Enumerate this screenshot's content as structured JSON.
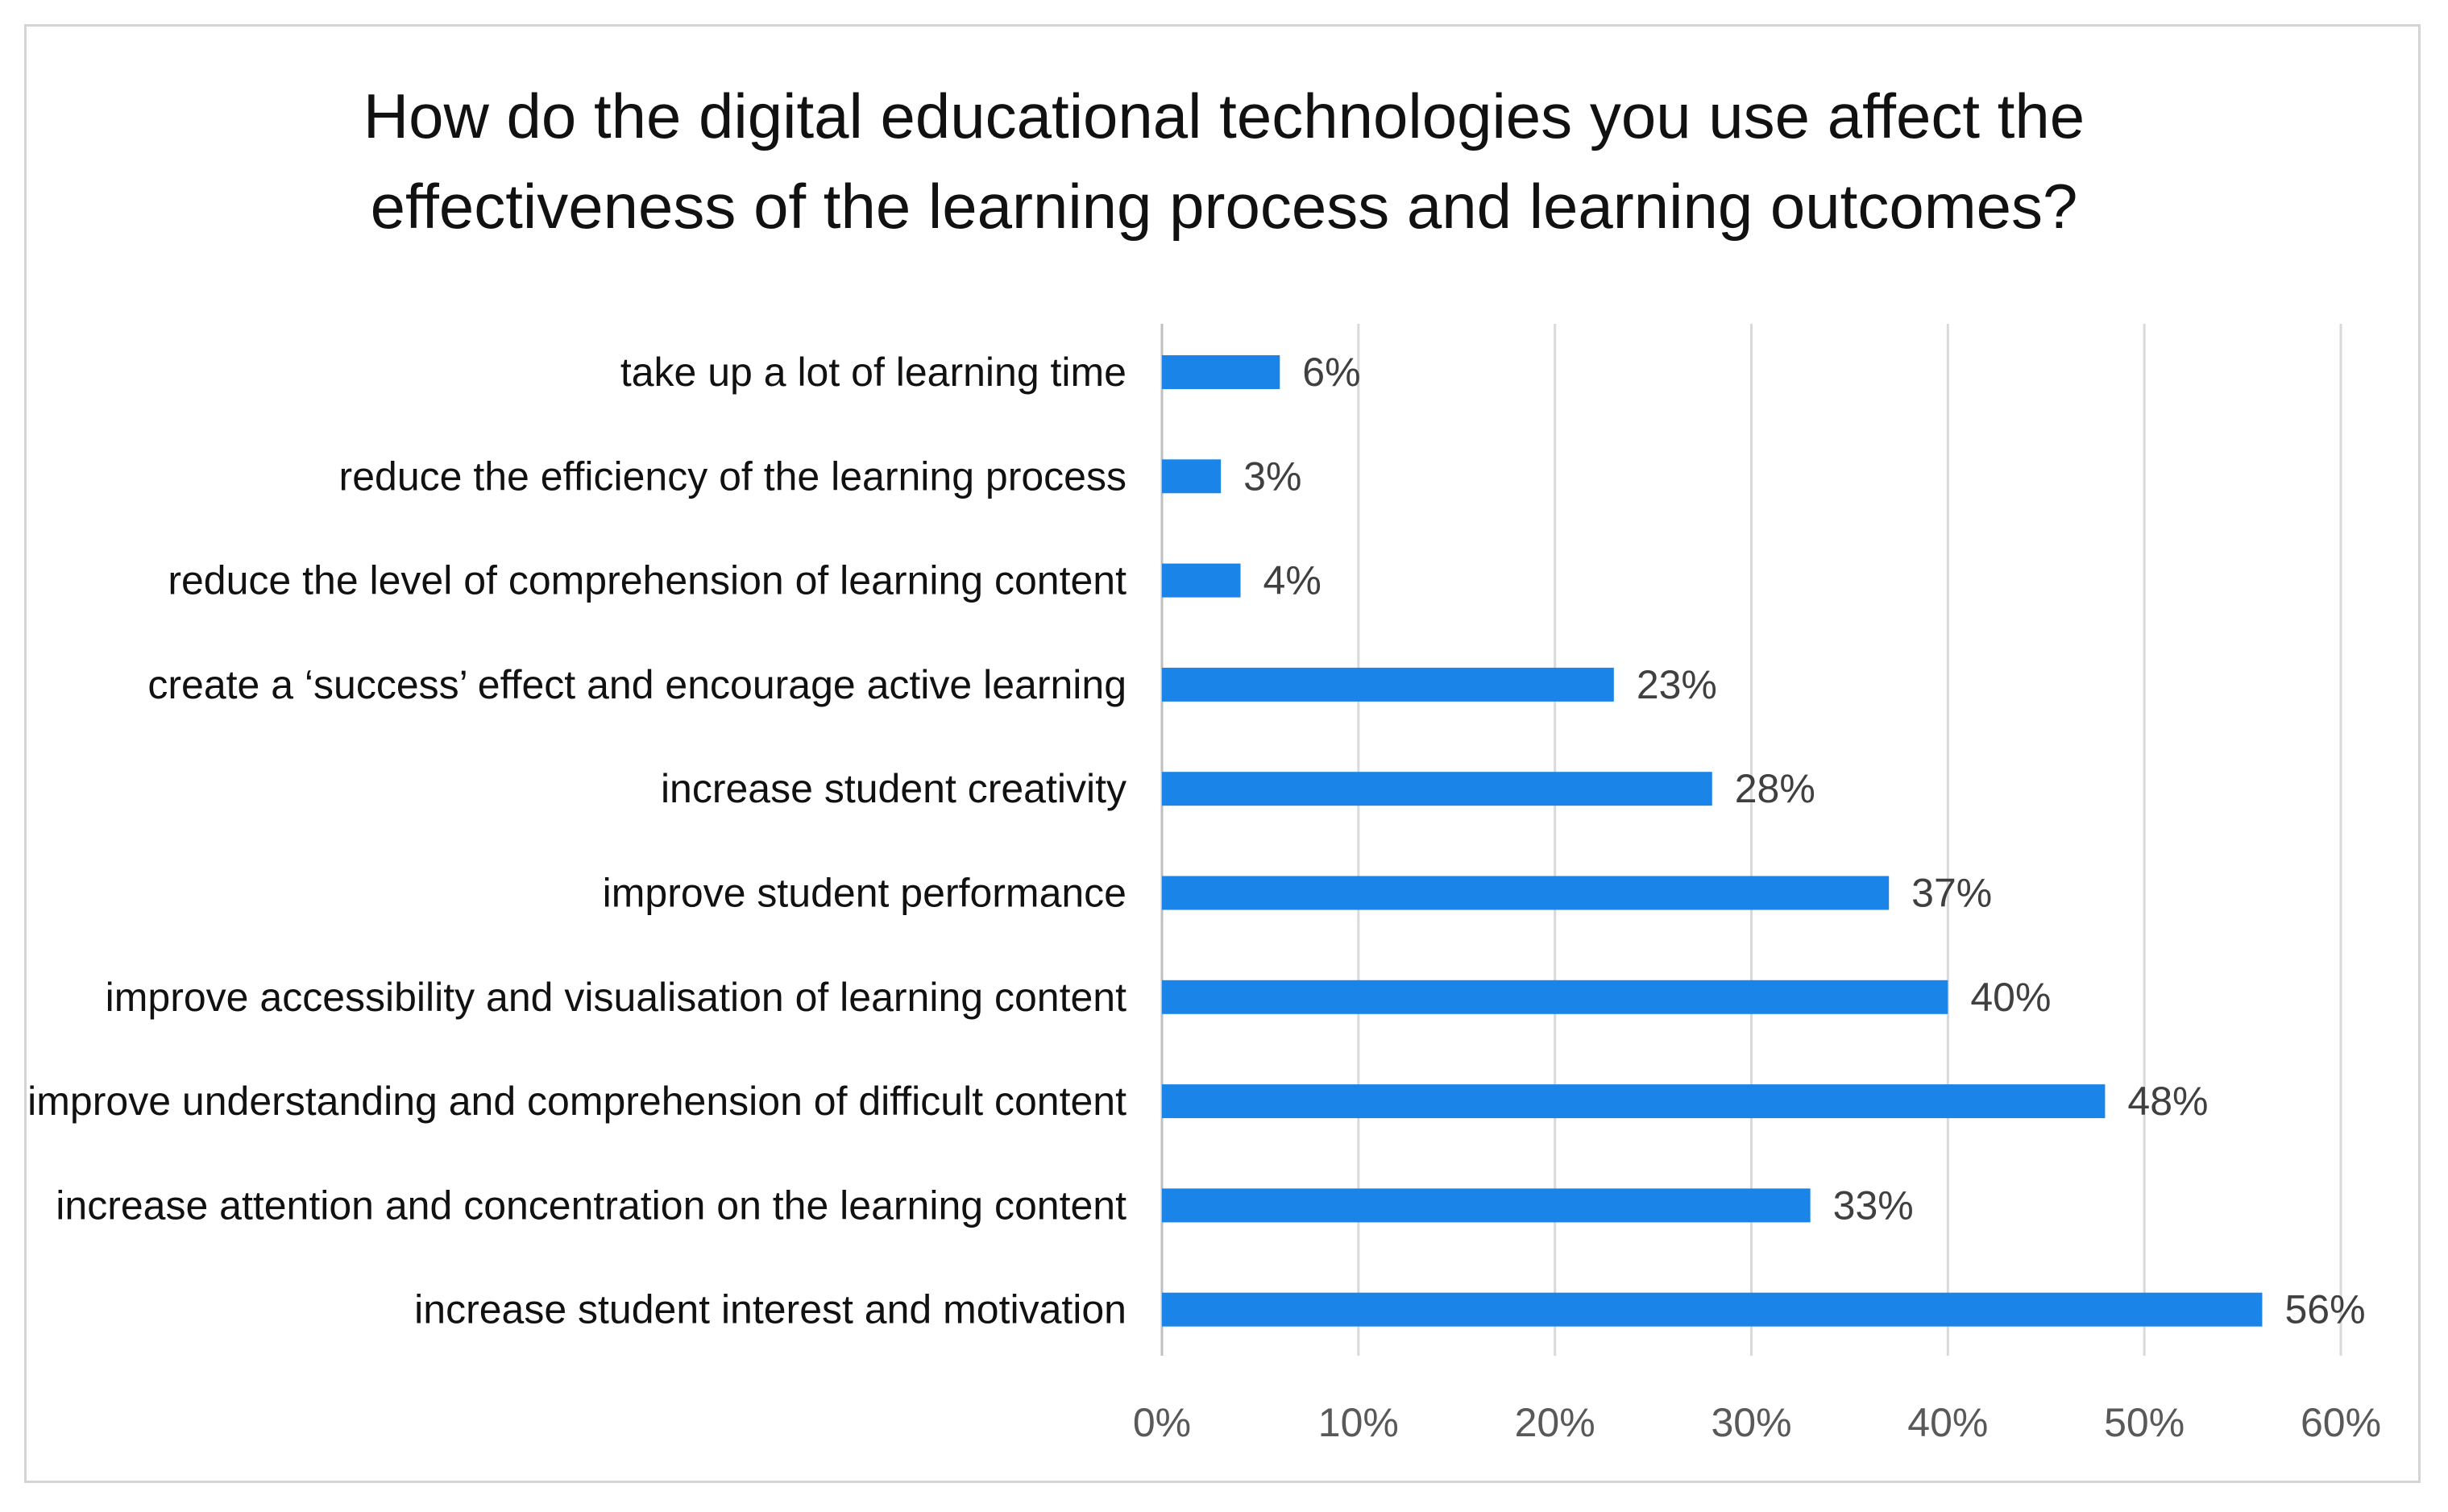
{
  "chart_data": {
    "type": "bar",
    "orientation": "horizontal",
    "title_lines": [
      "How do the digital educational technologies you use affect the",
      "effectiveness of the learning process and learning outcomes?"
    ],
    "categories": [
      "take up a lot of learning time",
      "reduce the efficiency of the learning process",
      "reduce the level of comprehension of learning content",
      "create a ‘success’ effect and encourage active learning",
      "increase student creativity",
      "improve student performance",
      "improve accessibility and visualisation of learning content",
      "improve understanding and comprehension of difficult content",
      "increase attention and concentration on the learning content",
      "increase student interest and motivation"
    ],
    "values": [
      6,
      3,
      4,
      23,
      28,
      37,
      40,
      48,
      33,
      56
    ],
    "value_labels": [
      "6%",
      "3%",
      "4%",
      "23%",
      "28%",
      "37%",
      "40%",
      "48%",
      "33%",
      "56%"
    ],
    "xlim": [
      0,
      60
    ],
    "x_ticks": [
      0,
      10,
      20,
      30,
      40,
      50,
      60
    ],
    "x_tick_labels": [
      "0%",
      "10%",
      "20%",
      "30%",
      "40%",
      "50%",
      "60%"
    ],
    "grid": "vertical",
    "legend": "none",
    "colors": {
      "bar": "#1a84e8",
      "grid": "#d9d9d9",
      "frame": "#d4d4d4"
    }
  }
}
